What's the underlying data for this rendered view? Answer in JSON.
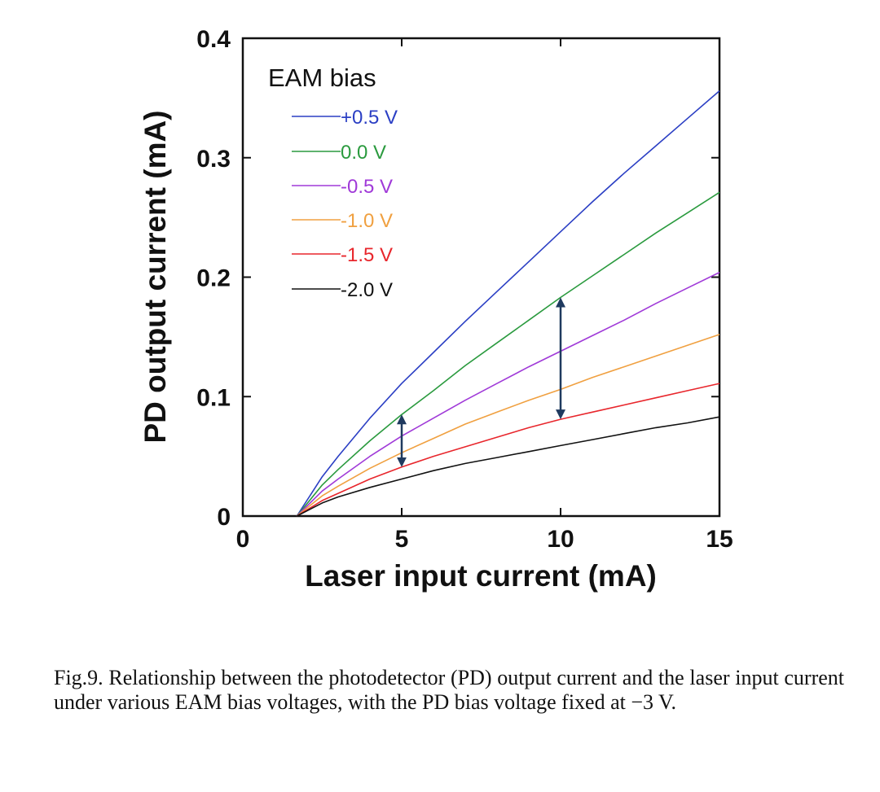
{
  "chart_data": {
    "type": "line",
    "xlabel": "Laser input current (mA)",
    "ylabel": "PD output current (mA)",
    "xlim": [
      0,
      15
    ],
    "ylim": [
      0,
      0.4
    ],
    "xticks": [
      "0",
      "5",
      "10",
      "15"
    ],
    "yticks": [
      "0",
      "0.1",
      "0.2",
      "0.3",
      "0.4"
    ],
    "xtick_values": [
      0,
      5,
      10,
      15
    ],
    "ytick_values": [
      0,
      0.1,
      0.2,
      0.3,
      0.4
    ],
    "grid": false,
    "legend": {
      "title": "EAM bias",
      "placement": "top-left"
    },
    "x": [
      1.7,
      2.5,
      3,
      4,
      5,
      6,
      7,
      8,
      9,
      10,
      11,
      12,
      13,
      14,
      15
    ],
    "series": [
      {
        "name": "+0.5 V",
        "color": "#2b3fc4",
        "values": [
          0,
          0.033,
          0.05,
          0.082,
          0.111,
          0.137,
          0.163,
          0.188,
          0.213,
          0.238,
          0.263,
          0.287,
          0.31,
          0.333,
          0.356
        ]
      },
      {
        "name": "0.0 V",
        "color": "#2a9a3e",
        "values": [
          0,
          0.026,
          0.039,
          0.063,
          0.085,
          0.105,
          0.126,
          0.145,
          0.164,
          0.183,
          0.201,
          0.219,
          0.237,
          0.254,
          0.271
        ]
      },
      {
        "name": "-0.5 V",
        "color": "#a03ad8",
        "values": [
          0,
          0.021,
          0.031,
          0.05,
          0.067,
          0.082,
          0.097,
          0.111,
          0.125,
          0.138,
          0.151,
          0.164,
          0.178,
          0.191,
          0.204
        ]
      },
      {
        "name": "-1.0 V",
        "color": "#f0a040",
        "values": [
          0,
          0.017,
          0.025,
          0.04,
          0.053,
          0.065,
          0.077,
          0.087,
          0.097,
          0.106,
          0.116,
          0.125,
          0.134,
          0.143,
          0.152
        ]
      },
      {
        "name": "-1.5 V",
        "color": "#e8262c",
        "values": [
          0,
          0.013,
          0.019,
          0.031,
          0.041,
          0.05,
          0.058,
          0.066,
          0.074,
          0.081,
          0.087,
          0.093,
          0.099,
          0.105,
          0.111
        ]
      },
      {
        "name": "-2.0 V",
        "color": "#111111",
        "values": [
          0,
          0.011,
          0.016,
          0.024,
          0.031,
          0.038,
          0.044,
          0.049,
          0.054,
          0.059,
          0.064,
          0.069,
          0.074,
          0.078,
          0.083
        ]
      }
    ],
    "annotations": [
      {
        "type": "double-arrow",
        "x": 5,
        "y_from": 0.041,
        "y_to": 0.085,
        "color": "#1f3a5f"
      },
      {
        "type": "double-arrow",
        "x": 10,
        "y_from": 0.081,
        "y_to": 0.183,
        "color": "#1f3a5f"
      }
    ]
  },
  "caption": "Fig.9. Relationship between the photodetector (PD) output current and the laser input current under various EAM bias voltages, with the PD bias voltage fixed at −3 V."
}
